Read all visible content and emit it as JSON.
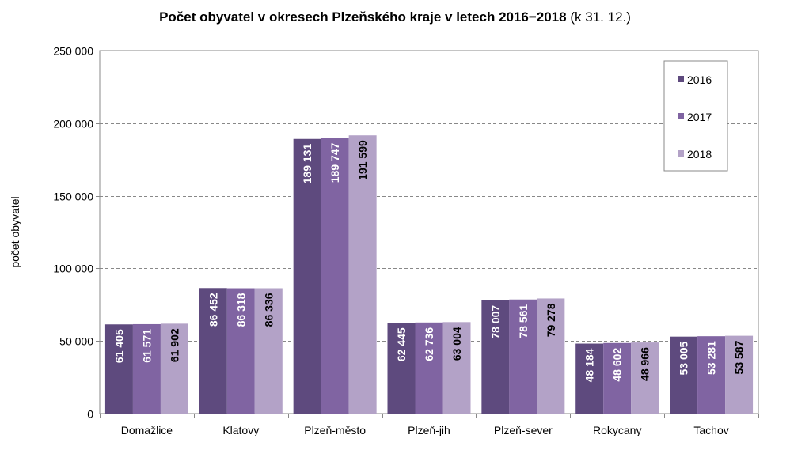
{
  "chart_data": {
    "type": "bar",
    "title": "Počet obyvatel v okresech Plzeňského kraje  v letech 2016−2018",
    "subtitle": "(k 31. 12.)",
    "xlabel": "",
    "ylabel": "počet obyvatel",
    "ylim": [
      0,
      250000
    ],
    "yticks": [
      0,
      50000,
      100000,
      150000,
      200000,
      250000
    ],
    "ytick_labels": [
      "0",
      "50 000",
      "100 000",
      "150 000",
      "200 000",
      "250 000"
    ],
    "grid": "horizontal dashed",
    "legend_position": "top-right",
    "categories": [
      "Domažlice",
      "Klatovy",
      "Plzeň-město",
      "Plzeň-jih",
      "Plzeň-sever",
      "Rokycany",
      "Tachov"
    ],
    "series": [
      {
        "name": "2016",
        "color": "#5E4A7E",
        "label_color": "#ffffff",
        "values": [
          61405,
          86452,
          189131,
          62445,
          78007,
          48184,
          53005
        ],
        "labels": [
          "61 405",
          "86 452",
          "189 131",
          "62 445",
          "78 007",
          "48 184",
          "53 005"
        ]
      },
      {
        "name": "2017",
        "color": "#8064A2",
        "label_color": "#ffffff",
        "values": [
          61571,
          86318,
          189747,
          62736,
          78561,
          48602,
          53281
        ],
        "labels": [
          "61 571",
          "86 318",
          "189 747",
          "62 736",
          "78 561",
          "48 602",
          "53 281"
        ]
      },
      {
        "name": "2018",
        "color": "#B3A2C7",
        "label_color": "#000000",
        "values": [
          61902,
          86336,
          191599,
          63004,
          79278,
          48966,
          53587
        ],
        "labels": [
          "61 902",
          "86 336",
          "191 599",
          "63 004",
          "79 278",
          "48 966",
          "53 587"
        ]
      }
    ]
  }
}
